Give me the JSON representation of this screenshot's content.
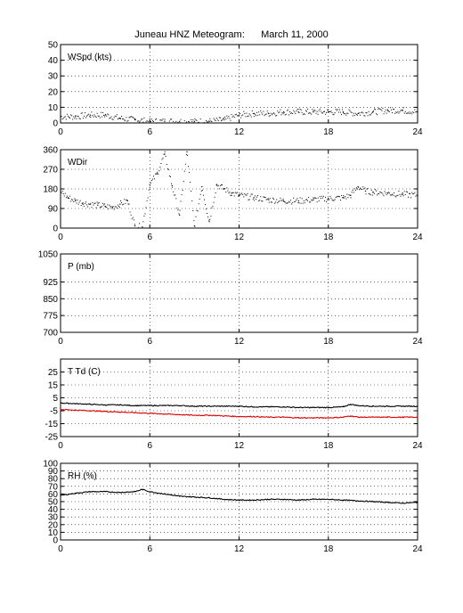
{
  "title": "Juneau HNZ Meteogram:      March 11, 2000",
  "chart_data": [
    {
      "type": "scatter",
      "ylabel": "WSpd (kts)",
      "xlim": [
        0,
        24
      ],
      "xticks": [
        "0",
        "6",
        "12",
        "18",
        "24"
      ],
      "ylim": [
        0,
        50
      ],
      "yticks": [
        "0",
        "10",
        "20",
        "30",
        "40",
        "50"
      ],
      "grid": true,
      "series": [
        {
          "color": "#000000",
          "x": [
            0,
            1,
            2,
            3,
            4,
            5,
            6,
            7,
            8,
            9,
            10,
            11,
            12,
            13,
            14,
            15,
            16,
            17,
            18,
            19,
            20,
            21,
            22,
            23,
            24
          ],
          "values": [
            4,
            4,
            5,
            5,
            3,
            2,
            1,
            1,
            1,
            1,
            1,
            2,
            5,
            6,
            6,
            7,
            7,
            7,
            7,
            7,
            6,
            7,
            8,
            8,
            7
          ]
        }
      ]
    },
    {
      "type": "scatter",
      "ylabel": "WDir",
      "xlim": [
        0,
        24
      ],
      "xticks": [
        "0",
        "6",
        "12",
        "18",
        "24"
      ],
      "ylim": [
        0,
        360
      ],
      "yticks": [
        "0",
        "90",
        "180",
        "270",
        "360"
      ],
      "grid": true,
      "series": [
        {
          "color": "#000000",
          "x": [
            0,
            0.5,
            1,
            1.5,
            2,
            2.5,
            3,
            3.5,
            4,
            4.5,
            5,
            5.5,
            6,
            6.5,
            7,
            7.5,
            8,
            8.5,
            9,
            9.5,
            10,
            10.5,
            11,
            11.5,
            12,
            13,
            14,
            15,
            16,
            17,
            18,
            19,
            19.5,
            20,
            20.5,
            21,
            22,
            23,
            24
          ],
          "values": [
            170,
            140,
            125,
            115,
            110,
            105,
            100,
            95,
            110,
            125,
            10,
            5,
            200,
            250,
            340,
            195,
            60,
            350,
            10,
            190,
            30,
            200,
            180,
            160,
            150,
            140,
            130,
            125,
            125,
            130,
            135,
            140,
            150,
            190,
            170,
            165,
            160,
            155,
            150
          ]
        }
      ]
    },
    {
      "type": "scatter",
      "ylabel": "P (mb)",
      "xlim": [
        0,
        24
      ],
      "xticks": [
        "0",
        "6",
        "12",
        "18",
        "24"
      ],
      "ylim": [
        700,
        1050
      ],
      "yticks": [
        "700",
        "775",
        "850",
        "925",
        "1050"
      ],
      "grid": true,
      "series": []
    },
    {
      "type": "line",
      "ylabel": "T Td (C)",
      "xlim": [
        0,
        24
      ],
      "xticks": [
        "0",
        "6",
        "12",
        "18",
        "24"
      ],
      "ylim": [
        -25,
        35
      ],
      "yticks": [
        "-25",
        "-15",
        "-5",
        "5",
        "15",
        "25"
      ],
      "grid": true,
      "series": [
        {
          "color": "#000000",
          "x": [
            0,
            1,
            2,
            3,
            4,
            5,
            6,
            7,
            8,
            9,
            10,
            11,
            12,
            13,
            14,
            15,
            16,
            17,
            18,
            19,
            19.5,
            20,
            21,
            22,
            23,
            24
          ],
          "values": [
            1,
            0.5,
            0,
            -0.5,
            -0.5,
            -1,
            -1,
            -1,
            -1,
            -1.5,
            -1.5,
            -1.5,
            -1.5,
            -2,
            -2,
            -2,
            -2.5,
            -2.5,
            -2.5,
            -2,
            0,
            -1,
            -1.5,
            -1.5,
            -1.5,
            -1.5
          ]
        },
        {
          "color": "#dd0000",
          "x": [
            0,
            1,
            2,
            3,
            4,
            5,
            6,
            7,
            8,
            9,
            10,
            11,
            12,
            13,
            14,
            15,
            16,
            17,
            18,
            19,
            19.5,
            20,
            21,
            22,
            23,
            24
          ],
          "values": [
            -4,
            -4.5,
            -5,
            -5.5,
            -6,
            -6.5,
            -7,
            -7.5,
            -8,
            -8.5,
            -8.5,
            -9,
            -9.5,
            -9.5,
            -10,
            -10,
            -10.5,
            -10.5,
            -10.5,
            -10,
            -9,
            -10,
            -10,
            -10,
            -10,
            -10
          ]
        }
      ]
    },
    {
      "type": "line",
      "ylabel": "RH (%)",
      "xlim": [
        0,
        24
      ],
      "xticks": [
        "0",
        "6",
        "12",
        "18",
        "24"
      ],
      "ylim": [
        0,
        100
      ],
      "yticks": [
        "0",
        "10",
        "20",
        "30",
        "40",
        "50",
        "60",
        "70",
        "80",
        "90",
        "100"
      ],
      "grid": true,
      "series": [
        {
          "color": "#000000",
          "x": [
            0,
            1,
            2,
            3,
            4,
            5,
            5.5,
            6,
            7,
            8,
            9,
            10,
            11,
            12,
            13,
            14,
            15,
            16,
            17,
            18,
            19,
            20,
            21,
            22,
            23,
            24
          ],
          "values": [
            58,
            61,
            63,
            63,
            62,
            63,
            66,
            63,
            60,
            57,
            56,
            55,
            53,
            52,
            52,
            53,
            53,
            52,
            53,
            53,
            52,
            51,
            50,
            49,
            48,
            49
          ]
        }
      ]
    }
  ]
}
